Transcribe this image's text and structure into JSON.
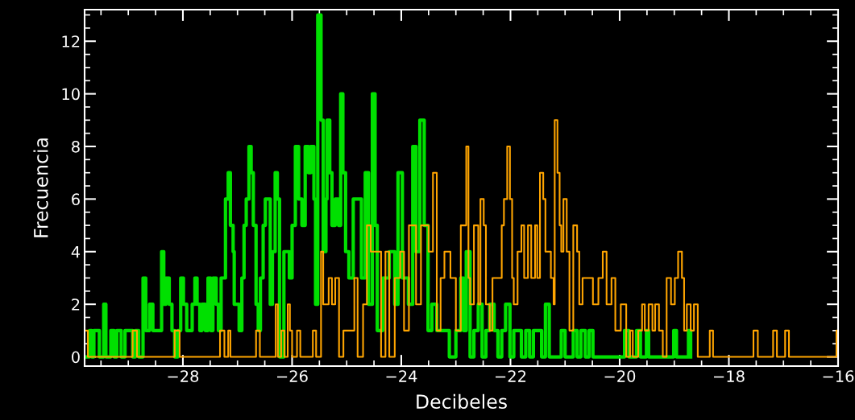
{
  "chart_data": {
    "type": "step",
    "xlabel": "Decibeles",
    "ylabel": "Frecuencia",
    "xlim": [
      -29.8,
      -16
    ],
    "ylim": [
      -0.35,
      13.2
    ],
    "xticks": [
      {
        "value": -28,
        "label": "−28"
      },
      {
        "value": -26,
        "label": "−26"
      },
      {
        "value": -24,
        "label": "−24"
      },
      {
        "value": -22,
        "label": "−22"
      },
      {
        "value": -20,
        "label": "−20"
      },
      {
        "value": -18,
        "label": "−18"
      },
      {
        "value": -16,
        "label": "−16"
      }
    ],
    "yticks": [
      0,
      2,
      4,
      6,
      8,
      10,
      12
    ],
    "grid": false,
    "marker": "none",
    "line_style": "solid",
    "series": [
      {
        "color": "#00e000",
        "x": [
          -29.79,
          -29.71,
          -29.67,
          -29.63,
          -29.53,
          -29.45,
          -29.41,
          -29.32,
          -29.26,
          -29.21,
          -29.13,
          -29.06,
          -28.92,
          -28.87,
          -28.81,
          -28.73,
          -28.68,
          -28.61,
          -28.55,
          -28.39,
          -28.35,
          -28.31,
          -28.25,
          -28.2,
          -28.15,
          -28.09,
          -28.04,
          -27.99,
          -27.93,
          -27.83,
          -27.78,
          -27.74,
          -27.69,
          -27.65,
          -27.59,
          -27.54,
          -27.49,
          -27.45,
          -27.39,
          -27.35,
          -27.3,
          -27.22,
          -27.17,
          -27.13,
          -27.08,
          -27.06,
          -26.97,
          -26.92,
          -26.88,
          -26.84,
          -26.79,
          -26.75,
          -26.71,
          -26.66,
          -26.62,
          -26.58,
          -26.53,
          -26.49,
          -26.4,
          -26.36,
          -26.31,
          -26.27,
          -26.23,
          -26.15,
          -26.05,
          -26.0,
          -25.94,
          -25.88,
          -25.82,
          -25.76,
          -25.7,
          -25.66,
          -25.6,
          -25.57,
          -25.53,
          -25.47,
          -25.43,
          -25.38,
          -25.36,
          -25.31,
          -25.27,
          -25.21,
          -25.15,
          -25.11,
          -25.07,
          -25.02,
          -24.96,
          -24.88,
          -24.8,
          -24.73,
          -24.66,
          -24.6,
          -24.53,
          -24.48,
          -24.44,
          -24.34,
          -24.22,
          -24.12,
          -24.06,
          -23.98,
          -23.87,
          -23.79,
          -23.73,
          -23.66,
          -23.58,
          -23.51,
          -23.44,
          -23.35,
          -23.12,
          -23.0,
          -22.91,
          -22.86,
          -22.81,
          -22.74,
          -22.67,
          -22.59,
          -22.52,
          -22.45,
          -22.38,
          -22.3,
          -22.23,
          -22.16,
          -22.09,
          -22.01,
          -21.94,
          -21.8,
          -21.72,
          -21.65,
          -21.58,
          -21.43,
          -21.36,
          -21.29,
          -21.07,
          -21.0,
          -20.85,
          -20.78,
          -20.71,
          -20.63,
          -20.56,
          -20.49,
          -19.91,
          -19.83,
          -19.69,
          -19.62,
          -19.51,
          -19.47,
          -19.01,
          -18.96,
          -18.74,
          -18.7
        ],
        "values": [
          0,
          1,
          0,
          1,
          0,
          2,
          0,
          1,
          0,
          1,
          0,
          1,
          0,
          1,
          0,
          3,
          1,
          2,
          1,
          4,
          2,
          3,
          2,
          1,
          0,
          1,
          3,
          2,
          1,
          2,
          3,
          2,
          1,
          2,
          1,
          3,
          1,
          3,
          2,
          1,
          3,
          6,
          7,
          5,
          4,
          2,
          1,
          3,
          5,
          6,
          8,
          7,
          5,
          2,
          1,
          3,
          5,
          6,
          2,
          4,
          7,
          6,
          0,
          4,
          3,
          5,
          8,
          6,
          5,
          8,
          7,
          8,
          6,
          2,
          13,
          9,
          4,
          6,
          9,
          7,
          5,
          6,
          5,
          10,
          7,
          4,
          3,
          6,
          6,
          3,
          7,
          2,
          10,
          5,
          1,
          3,
          4,
          2,
          7,
          3,
          2,
          8,
          4,
          9,
          5,
          1,
          2,
          1,
          0,
          1,
          3,
          1,
          4,
          0,
          1,
          2,
          0,
          1,
          2,
          1,
          0,
          1,
          2,
          0,
          1,
          0,
          1,
          0,
          1,
          0,
          2,
          0,
          1,
          0,
          1,
          0,
          1,
          0,
          1,
          0,
          1,
          0,
          1,
          0,
          1,
          0,
          1,
          0,
          1,
          0
        ]
      },
      {
        "color": "#ffa500",
        "x": [
          -29.79,
          -29.74,
          -28.92,
          -28.84,
          -28.15,
          -28.06,
          -27.32,
          -27.24,
          -27.17,
          -27.13,
          -26.66,
          -26.59,
          -26.3,
          -26.26,
          -26.2,
          -26.14,
          -26.08,
          -26.04,
          -26.0,
          -25.91,
          -25.85,
          -25.62,
          -25.56,
          -25.47,
          -25.43,
          -25.33,
          -25.27,
          -25.21,
          -25.14,
          -25.06,
          -24.86,
          -24.8,
          -24.7,
          -24.63,
          -24.56,
          -24.37,
          -24.29,
          -24.22,
          -24.12,
          -24.02,
          -23.95,
          -23.86,
          -23.73,
          -23.64,
          -23.5,
          -23.42,
          -23.35,
          -23.28,
          -23.21,
          -23.1,
          -23.0,
          -22.91,
          -22.81,
          -22.77,
          -22.74,
          -22.67,
          -22.59,
          -22.55,
          -22.49,
          -22.45,
          -22.38,
          -22.33,
          -22.16,
          -22.12,
          -22.06,
          -22.01,
          -21.97,
          -21.94,
          -21.87,
          -21.8,
          -21.75,
          -21.68,
          -21.62,
          -21.55,
          -21.51,
          -21.46,
          -21.4,
          -21.36,
          -21.26,
          -21.21,
          -21.19,
          -21.14,
          -21.1,
          -21.07,
          -21.03,
          -20.97,
          -20.92,
          -20.85,
          -20.78,
          -20.74,
          -20.68,
          -20.49,
          -20.39,
          -20.31,
          -20.24,
          -20.15,
          -20.08,
          -19.98,
          -19.88,
          -19.81,
          -19.76,
          -19.66,
          -19.59,
          -19.54,
          -19.47,
          -19.4,
          -19.35,
          -19.28,
          -19.21,
          -19.14,
          -19.06,
          -18.99,
          -18.93,
          -18.86,
          -18.82,
          -18.77,
          -18.7,
          -18.64,
          -18.57,
          -18.35,
          -18.29,
          -17.55,
          -17.47,
          -17.19,
          -17.12,
          -16.97,
          -16.9,
          -16.03,
          -16.0
        ],
        "values": [
          1,
          0,
          1,
          0,
          1,
          0,
          1,
          0,
          1,
          0,
          1,
          0,
          2,
          0,
          1,
          0,
          2,
          1,
          0,
          1,
          0,
          1,
          0,
          4,
          2,
          3,
          2,
          3,
          0,
          1,
          3,
          0,
          2,
          5,
          4,
          0,
          4,
          0,
          3,
          4,
          1,
          5,
          2,
          5,
          4,
          7,
          1,
          3,
          4,
          3,
          1,
          5,
          8,
          3,
          2,
          5,
          2,
          6,
          5,
          2,
          1,
          3,
          5,
          6,
          8,
          6,
          3,
          2,
          4,
          5,
          3,
          5,
          3,
          5,
          3,
          7,
          6,
          4,
          3,
          2,
          9,
          7,
          5,
          4,
          6,
          4,
          1,
          5,
          4,
          2,
          3,
          2,
          3,
          4,
          2,
          3,
          1,
          2,
          0,
          1,
          0,
          1,
          2,
          1,
          2,
          1,
          2,
          1,
          0,
          3,
          2,
          3,
          4,
          3,
          1,
          2,
          1,
          2,
          0,
          1,
          0,
          1,
          0,
          1,
          0,
          1,
          0,
          1,
          1
        ]
      }
    ]
  }
}
